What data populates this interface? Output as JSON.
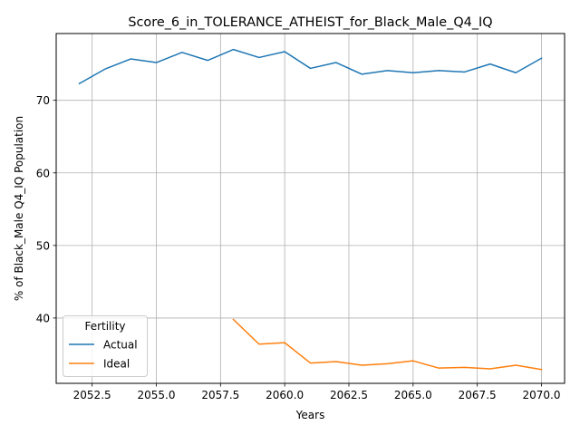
{
  "chart_data": {
    "type": "line",
    "title": "Score_6_in_TOLERANCE_ATHEIST_for_Black_Male_Q4_IQ",
    "xlabel": "Years",
    "ylabel": "% of Black_Male Q4_IQ Population",
    "xlim": [
      2051.1,
      2070.9
    ],
    "ylim": [
      31.0,
      79.2
    ],
    "xticks": [
      2052.5,
      2055.0,
      2057.5,
      2060.0,
      2062.5,
      2065.0,
      2067.5,
      2070.0
    ],
    "xtick_labels": [
      "2052.5",
      "2055.0",
      "2057.5",
      "2060.0",
      "2062.5",
      "2065.0",
      "2067.5",
      "2070.0"
    ],
    "yticks": [
      40,
      50,
      60,
      70
    ],
    "ytick_labels": [
      "40",
      "50",
      "60",
      "70"
    ],
    "grid": true,
    "legend": {
      "title": "Fertility",
      "placement": "lower-left"
    },
    "series": [
      {
        "name": "Actual",
        "color": "#1f77b4",
        "x": [
          2052,
          2053,
          2054,
          2055,
          2056,
          2057,
          2058,
          2059,
          2060,
          2061,
          2062,
          2063,
          2064,
          2065,
          2066,
          2067,
          2068,
          2069,
          2070
        ],
        "y": [
          72.3,
          74.3,
          75.7,
          75.2,
          76.6,
          75.5,
          77.0,
          75.9,
          76.7,
          74.4,
          75.2,
          73.6,
          74.1,
          73.8,
          74.1,
          73.9,
          75.0,
          73.8,
          75.8
        ]
      },
      {
        "name": "Ideal",
        "color": "#ff7f0e",
        "x": [
          2058,
          2059,
          2060,
          2061,
          2062,
          2063,
          2064,
          2065,
          2066,
          2067,
          2068,
          2069,
          2070
        ],
        "y": [
          39.8,
          36.4,
          36.6,
          33.8,
          34.0,
          33.5,
          33.7,
          34.1,
          33.1,
          33.2,
          33.0,
          33.5,
          32.9
        ]
      }
    ]
  }
}
